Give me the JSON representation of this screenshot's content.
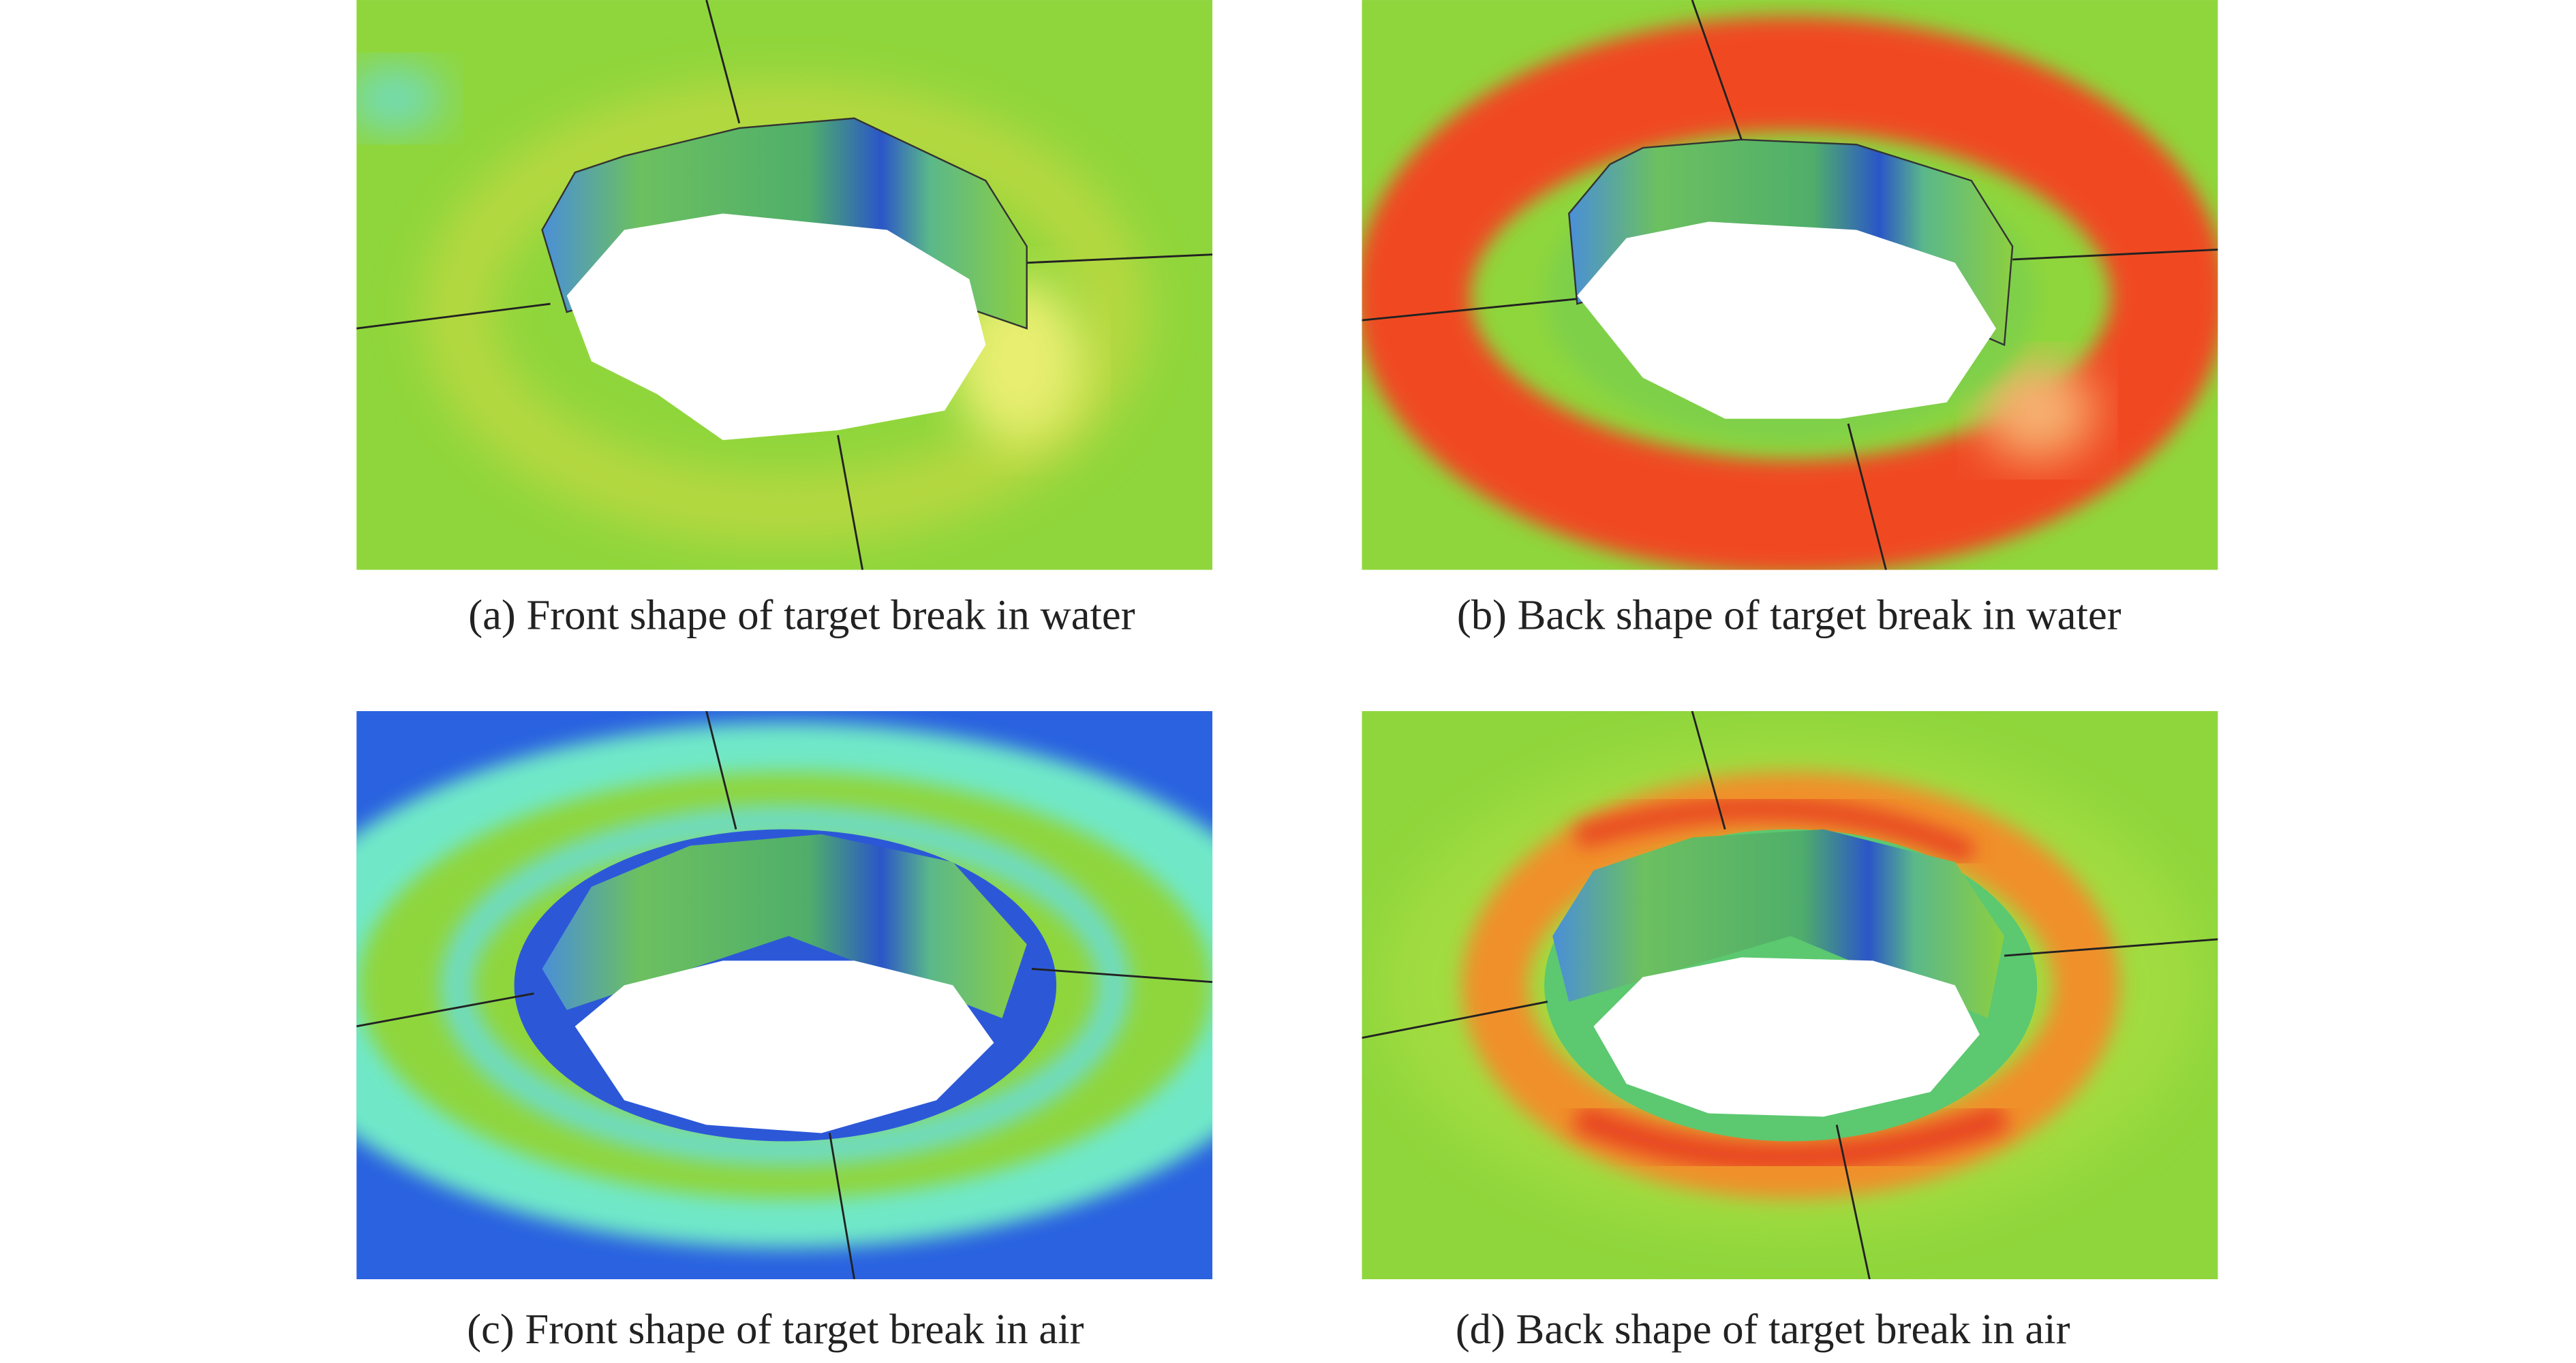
{
  "figure": {
    "captions": [
      "(a) Front shape of target break in water",
      "(b) Back shape of target break in water",
      "(c) Front shape of target break in air",
      "(d) Back shape of target break in air"
    ]
  }
}
